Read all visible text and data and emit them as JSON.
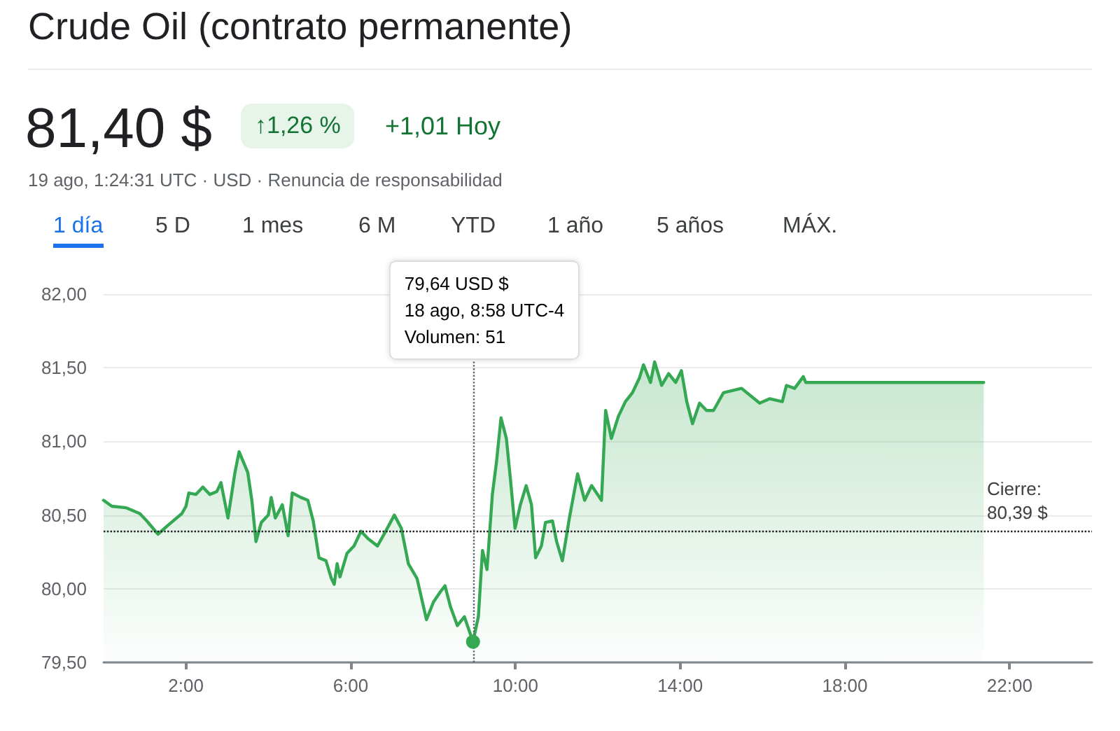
{
  "chart_data": {
    "type": "area",
    "title": "Crude Oil (contrato permanente)",
    "annotations": [
      "81,40 $",
      "↑1,26 %",
      "+1,01 Hoy",
      "19 ago, 1:24:31 UTC · USD · Renuncia de responsabilidad",
      "1 día",
      "5 D",
      "1 mes",
      "6 M",
      "YTD",
      "1 año",
      "5 años",
      "MÁX.",
      "79,64 USD $\n18 ago, 8:58 UTC-4\nVolumen: 51"
    ],
    "x": [
      0.0,
      0.2,
      0.54,
      0.88,
      1.05,
      1.32,
      1.56,
      1.9,
      2.0,
      2.07,
      2.24,
      2.41,
      2.58,
      2.75,
      2.85,
      3.02,
      3.19,
      3.29,
      3.5,
      3.6,
      3.7,
      3.83,
      4.0,
      4.07,
      4.17,
      4.34,
      4.48,
      4.58,
      4.79,
      4.96,
      5.09,
      5.23,
      5.4,
      5.53,
      5.6,
      5.67,
      5.74,
      5.91,
      6.08,
      6.25,
      6.42,
      6.65,
      6.83,
      7.06,
      7.23,
      7.4,
      7.61,
      7.84,
      8.01,
      8.18,
      8.29,
      8.42,
      8.59,
      8.76,
      8.97,
      9.1,
      9.2,
      9.31,
      9.44,
      9.54,
      9.65,
      9.78,
      9.88,
      9.99,
      10.12,
      10.26,
      10.39,
      10.49,
      10.63,
      10.73,
      10.9,
      11.0,
      11.14,
      11.31,
      11.51,
      11.68,
      11.85,
      12.09,
      12.19,
      12.33,
      12.5,
      12.67,
      12.84,
      13.01,
      13.11,
      13.28,
      13.38,
      13.55,
      13.72,
      13.89,
      14.03,
      14.16,
      14.3,
      14.47,
      14.64,
      14.81,
      15.05,
      15.49,
      15.93,
      16.17,
      16.48,
      16.58,
      16.78,
      16.99,
      17.05,
      21.37
    ],
    "series": [
      {
        "color": "#34a853",
        "values": [
          80.6,
          80.56,
          80.55,
          80.51,
          80.46,
          80.37,
          80.43,
          80.51,
          80.56,
          80.65,
          80.64,
          80.69,
          80.64,
          80.66,
          80.72,
          80.48,
          80.79,
          80.93,
          80.79,
          80.6,
          80.32,
          80.45,
          80.5,
          80.62,
          80.48,
          80.57,
          80.36,
          80.65,
          80.62,
          80.6,
          80.46,
          80.21,
          80.19,
          80.07,
          80.03,
          80.17,
          80.08,
          80.24,
          80.29,
          80.39,
          80.34,
          80.29,
          80.38,
          80.5,
          80.41,
          80.17,
          80.07,
          79.79,
          79.91,
          79.98,
          80.02,
          79.88,
          79.75,
          79.81,
          79.64,
          79.81,
          80.26,
          80.13,
          80.64,
          80.86,
          81.16,
          81.02,
          80.74,
          80.41,
          80.57,
          80.7,
          80.57,
          80.21,
          80.29,
          80.45,
          80.46,
          80.32,
          80.19,
          80.48,
          80.78,
          80.6,
          80.7,
          80.6,
          81.21,
          81.02,
          81.17,
          81.27,
          81.33,
          81.43,
          81.52,
          81.4,
          81.54,
          81.38,
          81.46,
          81.4,
          81.48,
          81.27,
          81.12,
          81.26,
          81.21,
          81.21,
          81.33,
          81.36,
          81.26,
          81.29,
          81.27,
          81.38,
          81.36,
          81.44,
          81.4,
          81.4
        ]
      }
    ],
    "xlim": [
      0,
      24
    ],
    "xticks": [
      {
        "value": 2,
        "label": "2:00"
      },
      {
        "value": 6,
        "label": "6:00"
      },
      {
        "value": 10,
        "label": "10:00"
      },
      {
        "value": 14,
        "label": "14:00"
      },
      {
        "value": 18,
        "label": "18:00"
      },
      {
        "value": 22,
        "label": "22:00"
      }
    ],
    "ylim": [
      79.5,
      82
    ],
    "yticks": [
      {
        "value": 79.5,
        "label": "79,50"
      },
      {
        "value": 80,
        "label": "80,00"
      },
      {
        "value": 80.5,
        "label": "80,50"
      },
      {
        "value": 81,
        "label": "81,00"
      },
      {
        "value": 81.5,
        "label": "81,50"
      },
      {
        "value": 82,
        "label": "82,00"
      }
    ],
    "ref_lines": [
      {
        "axis": "y",
        "value": 80.39,
        "label": "Cierre:\n80,39 $",
        "line_style": "dotted",
        "color": "#202124"
      },
      {
        "axis": "x",
        "value": 8.97,
        "line_style": "dotted",
        "color": "#5f6368"
      }
    ],
    "grid": "y",
    "marker": "none",
    "line_style": "solid"
  }
}
